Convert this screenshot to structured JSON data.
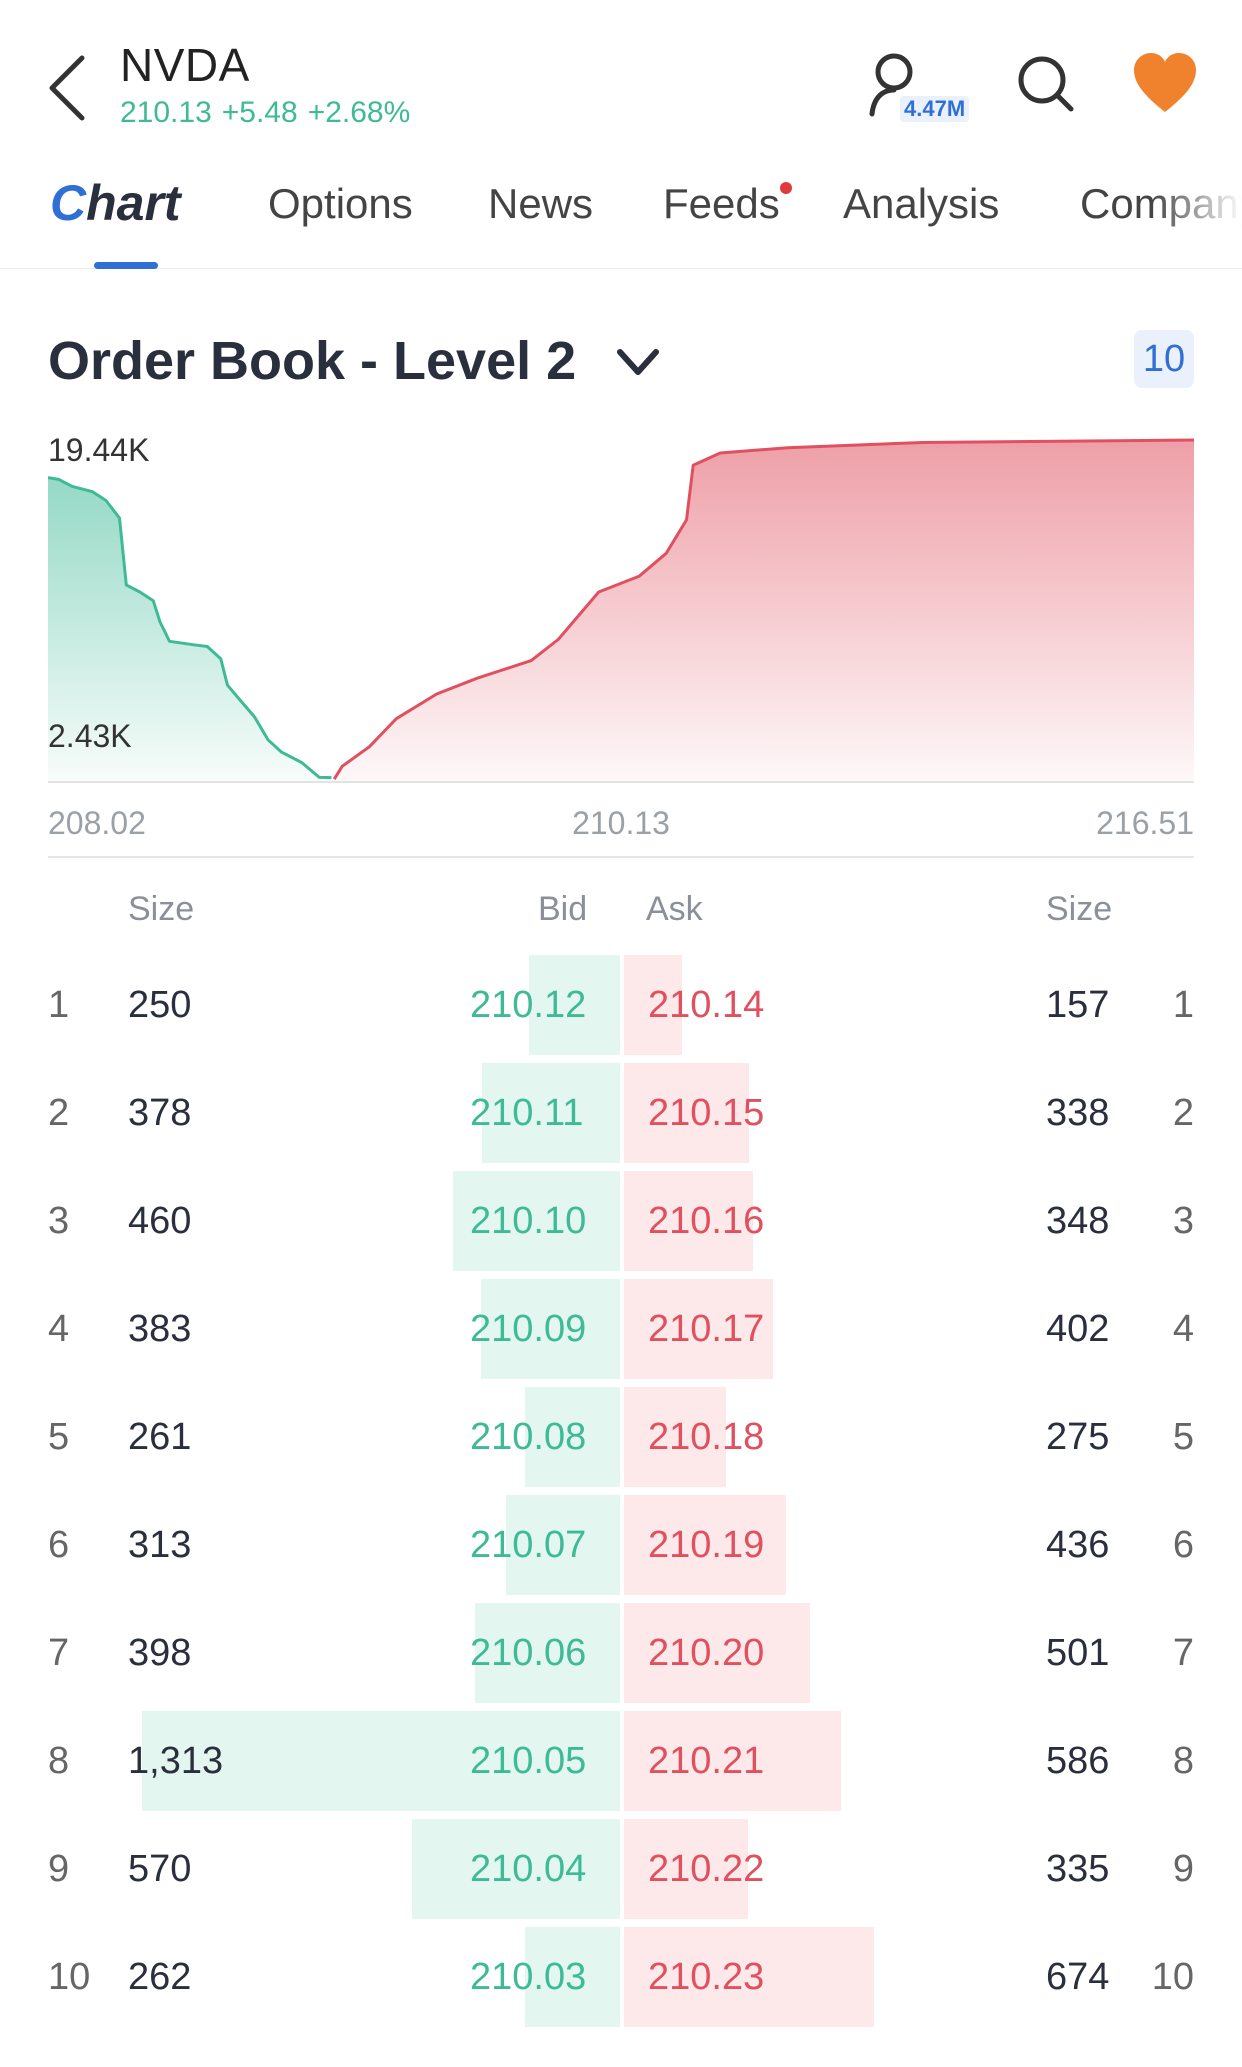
{
  "header": {
    "ticker": "NVDA",
    "price": "210.13",
    "change": "+5.48",
    "change_pct": "+2.68%",
    "user_badge": "4.47M",
    "colors": {
      "up": "#3fba96",
      "down": "#e0505f",
      "accent": "#2f6fd6",
      "heart": "#f0822e"
    }
  },
  "tabs": [
    {
      "label": "Chart",
      "active": true
    },
    {
      "label": "Options"
    },
    {
      "label": "News"
    },
    {
      "label": "Feeds",
      "has_dot": true
    },
    {
      "label": "Analysis"
    },
    {
      "label": "Company"
    }
  ],
  "order_book": {
    "title": "Order Book - Level 2",
    "depth": "10",
    "headers": {
      "bid_size": "Size",
      "bid": "Bid",
      "ask": "Ask",
      "ask_size": "Size"
    }
  },
  "chart_data": {
    "type": "area",
    "y_top_label": "19.44K",
    "y_bottom_label": "2.43K",
    "x_labels": [
      "208.02",
      "210.13",
      "216.51"
    ],
    "xlim": [
      208.02,
      216.51
    ],
    "ylim": [
      0,
      19440
    ],
    "series": [
      {
        "color": "#3fba96",
        "points": [
          [
            208.02,
            17300
          ],
          [
            208.1,
            17200
          ],
          [
            208.2,
            16800
          ],
          [
            208.35,
            16500
          ],
          [
            208.45,
            16000
          ],
          [
            208.55,
            15000
          ],
          [
            208.6,
            11200
          ],
          [
            208.7,
            10800
          ],
          [
            208.8,
            10300
          ],
          [
            208.85,
            9100
          ],
          [
            208.92,
            8000
          ],
          [
            209.1,
            7800
          ],
          [
            209.2,
            7700
          ],
          [
            209.3,
            7000
          ],
          [
            209.35,
            5500
          ],
          [
            209.45,
            4600
          ],
          [
            209.55,
            3700
          ],
          [
            209.65,
            2400
          ],
          [
            209.75,
            1700
          ],
          [
            209.9,
            1100
          ],
          [
            210.03,
            262
          ],
          [
            210.12,
            250
          ]
        ]
      },
      {
        "color": "#e0505f",
        "points": [
          [
            210.14,
            157
          ],
          [
            210.2,
            900
          ],
          [
            210.4,
            2000
          ],
          [
            210.6,
            3600
          ],
          [
            210.9,
            5000
          ],
          [
            211.2,
            5900
          ],
          [
            211.6,
            6900
          ],
          [
            211.8,
            8100
          ],
          [
            212.1,
            10800
          ],
          [
            212.4,
            11700
          ],
          [
            212.6,
            13000
          ],
          [
            212.75,
            14900
          ],
          [
            212.8,
            18000
          ],
          [
            213.0,
            18700
          ],
          [
            213.5,
            19000
          ],
          [
            214.5,
            19300
          ],
          [
            216.51,
            19440
          ]
        ]
      }
    ]
  },
  "bids": [
    {
      "idx": "1",
      "size": "250",
      "price": "210.12"
    },
    {
      "idx": "2",
      "size": "378",
      "price": "210.11"
    },
    {
      "idx": "3",
      "size": "460",
      "price": "210.10"
    },
    {
      "idx": "4",
      "size": "383",
      "price": "210.09"
    },
    {
      "idx": "5",
      "size": "261",
      "price": "210.08"
    },
    {
      "idx": "6",
      "size": "313",
      "price": "210.07"
    },
    {
      "idx": "7",
      "size": "398",
      "price": "210.06"
    },
    {
      "idx": "8",
      "size": "1,313",
      "price": "210.05"
    },
    {
      "idx": "9",
      "size": "570",
      "price": "210.04"
    },
    {
      "idx": "10",
      "size": "262",
      "price": "210.03"
    }
  ],
  "asks": [
    {
      "idx": "1",
      "size": "157",
      "price": "210.14"
    },
    {
      "idx": "2",
      "size": "338",
      "price": "210.15"
    },
    {
      "idx": "3",
      "size": "348",
      "price": "210.16"
    },
    {
      "idx": "4",
      "size": "402",
      "price": "210.17"
    },
    {
      "idx": "5",
      "size": "275",
      "price": "210.18"
    },
    {
      "idx": "6",
      "size": "436",
      "price": "210.19"
    },
    {
      "idx": "7",
      "size": "501",
      "price": "210.20"
    },
    {
      "idx": "8",
      "size": "586",
      "price": "210.21"
    },
    {
      "idx": "9",
      "size": "335",
      "price": "210.22"
    },
    {
      "idx": "10",
      "size": "674",
      "price": "210.23"
    }
  ]
}
